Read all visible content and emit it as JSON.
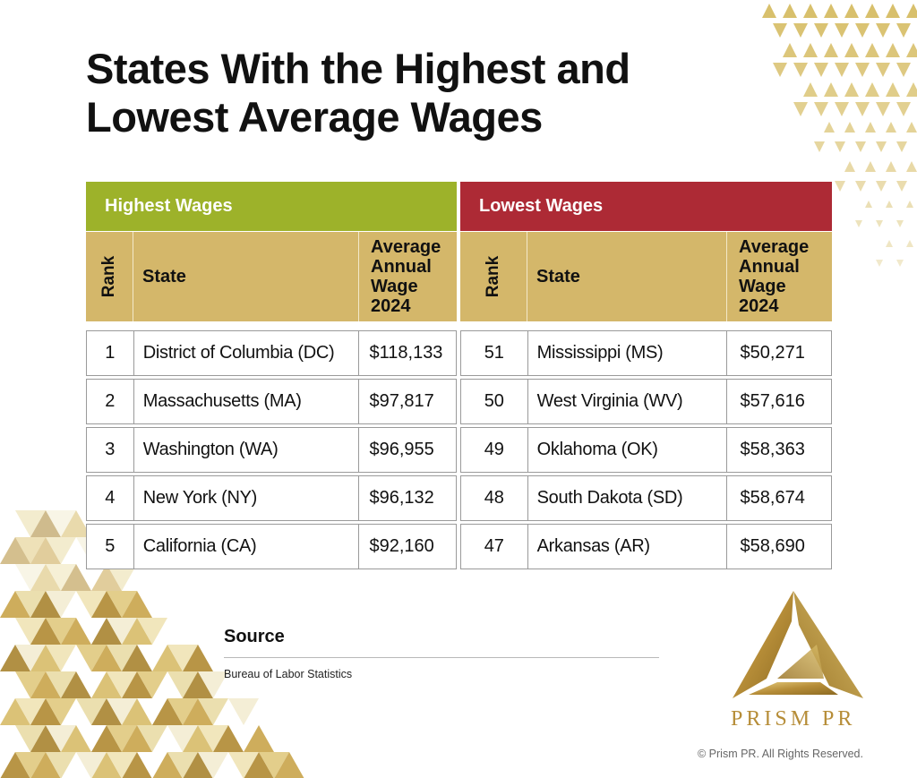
{
  "title": {
    "line1": "States With the Highest and",
    "line2": "Lowest Average Wages"
  },
  "highest": {
    "header": "Highest Wages",
    "columns": {
      "rank": "Rank",
      "state": "State",
      "wage": "Average\nAnnual\nWage\n2024"
    },
    "rows": [
      {
        "rank": "1",
        "state": "District of Columbia (DC)",
        "wage": "$118,133"
      },
      {
        "rank": "2",
        "state": "Massachusetts (MA)",
        "wage": "$97,817"
      },
      {
        "rank": "3",
        "state": "Washington (WA)",
        "wage": "$96,955"
      },
      {
        "rank": "4",
        "state": "New York (NY)",
        "wage": "$96,132"
      },
      {
        "rank": "5",
        "state": "California (CA)",
        "wage": "$92,160"
      }
    ]
  },
  "lowest": {
    "header": "Lowest Wages",
    "columns": {
      "rank": "Rank",
      "state": "State",
      "wage": "Average\nAnnual\nWage\n2024"
    },
    "rows": [
      {
        "rank": "51",
        "state": "Mississippi (MS)",
        "wage": "$50,271"
      },
      {
        "rank": "50",
        "state": "West Virginia (WV)",
        "wage": "$57,616"
      },
      {
        "rank": "49",
        "state": "Oklahoma (OK)",
        "wage": "$58,363"
      },
      {
        "rank": "48",
        "state": "South Dakota (SD)",
        "wage": "$58,674"
      },
      {
        "rank": "47",
        "state": "Arkansas (AR)",
        "wage": "$58,690"
      }
    ]
  },
  "source": {
    "label": "Source",
    "text": "Bureau of Labor Statistics"
  },
  "brand": {
    "name": "PRISM PR",
    "copyright": "© Prism PR. All Rights Reserved."
  },
  "colors": {
    "highest_header": "#9db22a",
    "lowest_header": "#ad2a35",
    "column_header": "#d4b76a",
    "gold": "#b68d38"
  },
  "icons": {
    "logo": "prism-triangle-logo",
    "decoration": "gold-triangle-pattern"
  }
}
